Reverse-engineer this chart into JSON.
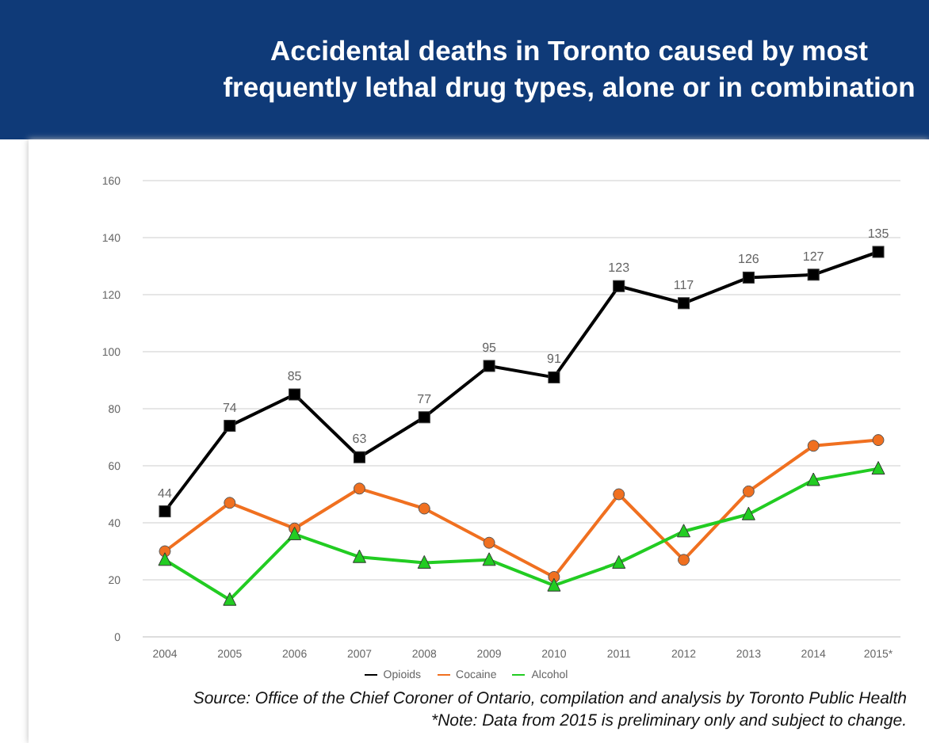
{
  "chart_data": {
    "type": "line",
    "title": "Accidental deaths in Toronto caused by most frequently lethal drug types, alone or in combination",
    "categories": [
      "2004",
      "2005",
      "2006",
      "2007",
      "2008",
      "2009",
      "2010",
      "2011",
      "2012",
      "2013",
      "2014",
      "2015*"
    ],
    "series": [
      {
        "name": "Opioids",
        "color": "#000000",
        "marker": "square",
        "values": [
          44,
          74,
          85,
          63,
          77,
          95,
          91,
          123,
          117,
          126,
          127,
          135
        ],
        "value_labels": [
          "44",
          "74",
          "85",
          "63",
          "77",
          "95",
          "91",
          "123",
          "117",
          "126",
          "127",
          "135"
        ]
      },
      {
        "name": "Cocaine",
        "color": "#f07020",
        "marker": "circle",
        "values": [
          30,
          47,
          38,
          52,
          45,
          33,
          21,
          50,
          27,
          51,
          67,
          69
        ]
      },
      {
        "name": "Alcohol",
        "color": "#22cc22",
        "marker": "triangle",
        "values": [
          27,
          13,
          36,
          28,
          26,
          27,
          18,
          26,
          37,
          43,
          55,
          59
        ]
      }
    ],
    "ylim": [
      0,
      160
    ],
    "yticks": [
      0,
      20,
      40,
      60,
      80,
      100,
      120,
      140,
      160
    ],
    "grid": "y",
    "legend": "bottom",
    "annotations": [
      "Source: Office of the Chief Coroner of Ontario, compilation and analysis by Toronto Public Health",
      "*Note: Data from 2015 is preliminary only and subject to change."
    ]
  }
}
